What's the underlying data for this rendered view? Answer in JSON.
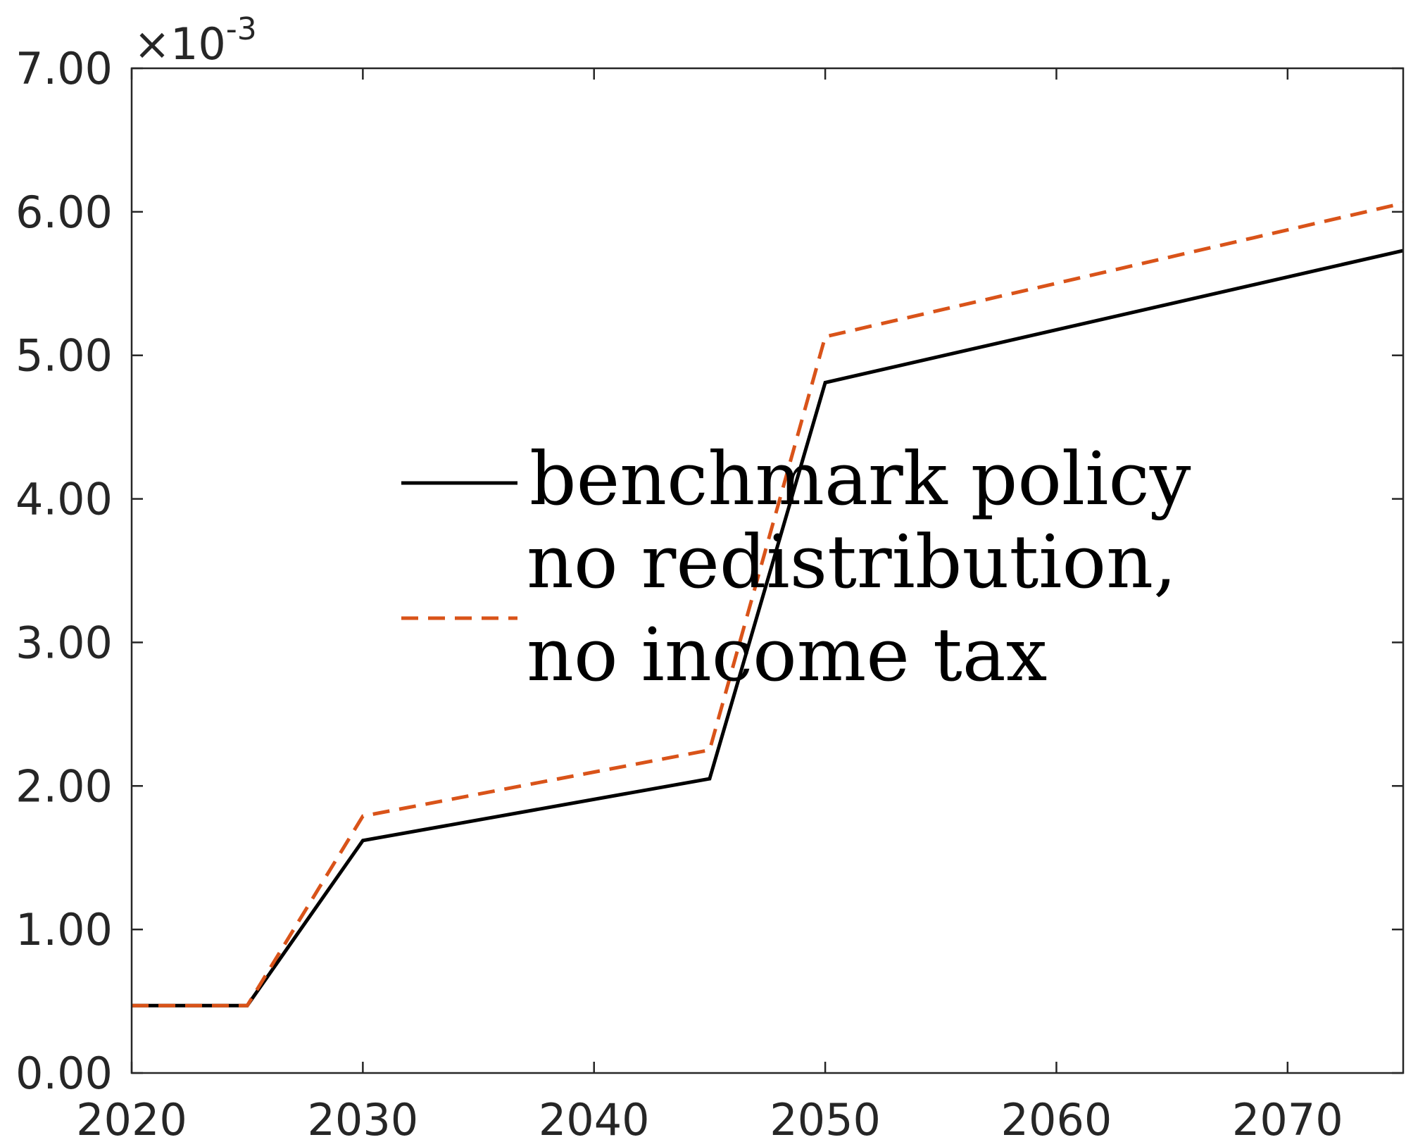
{
  "chart_data": {
    "type": "line",
    "y_multiplier": "×10",
    "y_exponent": "-3",
    "xlim": [
      2020,
      2075
    ],
    "ylim": [
      0,
      7
    ],
    "x_ticks": [
      2020,
      2030,
      2040,
      2050,
      2060,
      2070
    ],
    "y_ticks": [
      "0.00",
      "1.00",
      "2.00",
      "3.00",
      "4.00",
      "5.00",
      "6.00",
      "7.00"
    ],
    "grid": false,
    "legend_position": "center",
    "series": [
      {
        "name": "benchmark policy",
        "color": "#000000",
        "style": "solid",
        "x": [
          2020,
          2025,
          2030,
          2045,
          2050,
          2075
        ],
        "y": [
          0.47,
          0.47,
          1.62,
          2.05,
          4.81,
          5.73
        ]
      },
      {
        "name_lines": [
          "no redistribution,",
          "no income tax"
        ],
        "color": "#D95319",
        "style": "dashed",
        "x": [
          2020,
          2025,
          2030,
          2045,
          2050,
          2075
        ],
        "y": [
          0.47,
          0.47,
          1.79,
          2.25,
          5.13,
          6.06
        ]
      }
    ]
  }
}
